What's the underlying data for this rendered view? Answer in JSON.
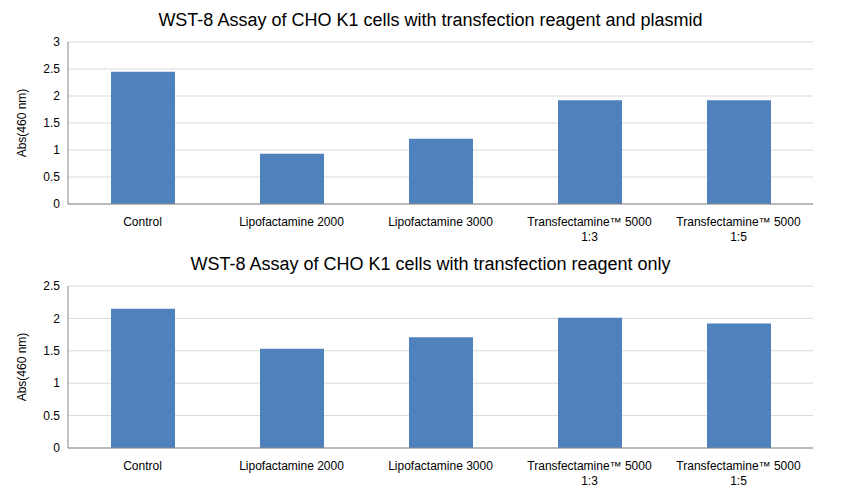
{
  "chart_data": [
    {
      "type": "bar",
      "title": "WST-8 Assay of CHO K1 cells with transfection reagent and plasmid",
      "y_label": "Abs(460 nm)",
      "categories": [
        "Control",
        "Lipofactamine 2000",
        "Lipofactamine 3000",
        "Transfectamine™ 5000 1:3",
        "Transfectamine™ 5000 1:5"
      ],
      "values": [
        2.45,
        0.93,
        1.21,
        1.92,
        1.92
      ],
      "color": "#4f81bd",
      "ylim": [
        0,
        3
      ],
      "yticks": [
        0,
        0.5,
        1,
        1.5,
        2,
        2.5,
        3
      ],
      "grid": true
    },
    {
      "type": "bar",
      "title": "WST-8 Assay of CHO K1 cells with transfection reagent only",
      "y_label": "Abs(460 nm)",
      "categories": [
        "Control",
        "Lipofactamine 2000",
        "Lipofactamine 3000",
        "Transfectamine™ 5000 1:3",
        "Transfectamine™ 5000 1:5"
      ],
      "values": [
        2.15,
        1.53,
        1.71,
        2.01,
        1.92
      ],
      "color": "#4f81bd",
      "ylim": [
        0,
        2.5
      ],
      "yticks": [
        0,
        0.5,
        1,
        1.5,
        2,
        2.5
      ],
      "grid": true
    }
  ]
}
